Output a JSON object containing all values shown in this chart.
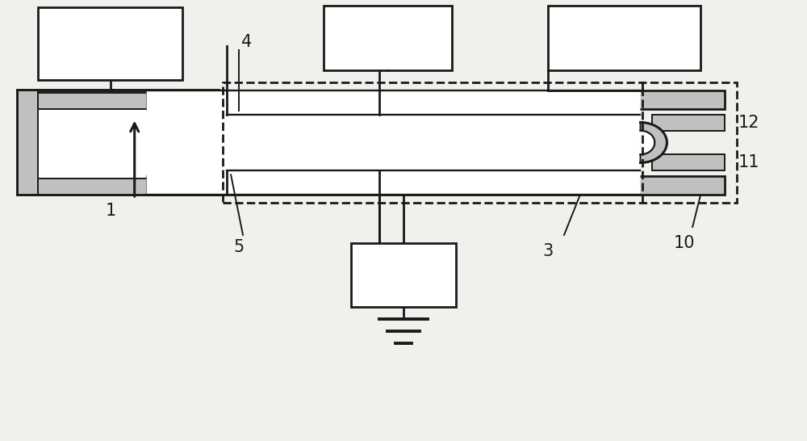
{
  "fig_width": 10.0,
  "fig_height": 5.46,
  "dpi": 100,
  "bg_color": "#f2f0ec",
  "line_color": "#1a1a1a",
  "gray_fill": "#c0c0c0",
  "white_fill": "#ffffff",
  "lw_thick": 2.8,
  "lw_med": 2.0,
  "lw_thin": 1.4
}
